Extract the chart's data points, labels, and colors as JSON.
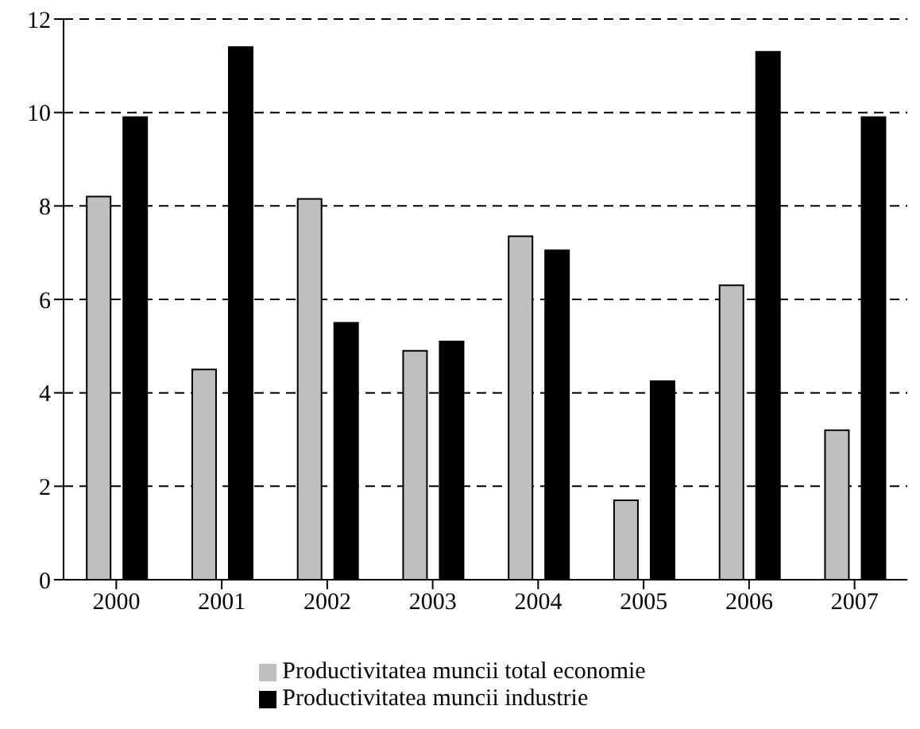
{
  "chart_data": {
    "type": "bar",
    "categories": [
      "2000",
      "2001",
      "2002",
      "2003",
      "2004",
      "2005",
      "2006",
      "2007"
    ],
    "series": [
      {
        "name": "Productivitatea muncii total economie",
        "color": "#bfbfbf",
        "values": [
          8.2,
          4.5,
          8.15,
          4.9,
          7.35,
          1.7,
          6.3,
          3.2
        ]
      },
      {
        "name": "Productivitatea muncii industrie",
        "color": "#000000",
        "values": [
          9.9,
          11.4,
          5.5,
          5.1,
          7.05,
          4.25,
          11.3,
          9.9
        ]
      }
    ],
    "ylim": [
      0,
      12
    ],
    "yticks": [
      0,
      2,
      4,
      6,
      8,
      10,
      12
    ],
    "grid": "y",
    "legend": "bottom"
  }
}
